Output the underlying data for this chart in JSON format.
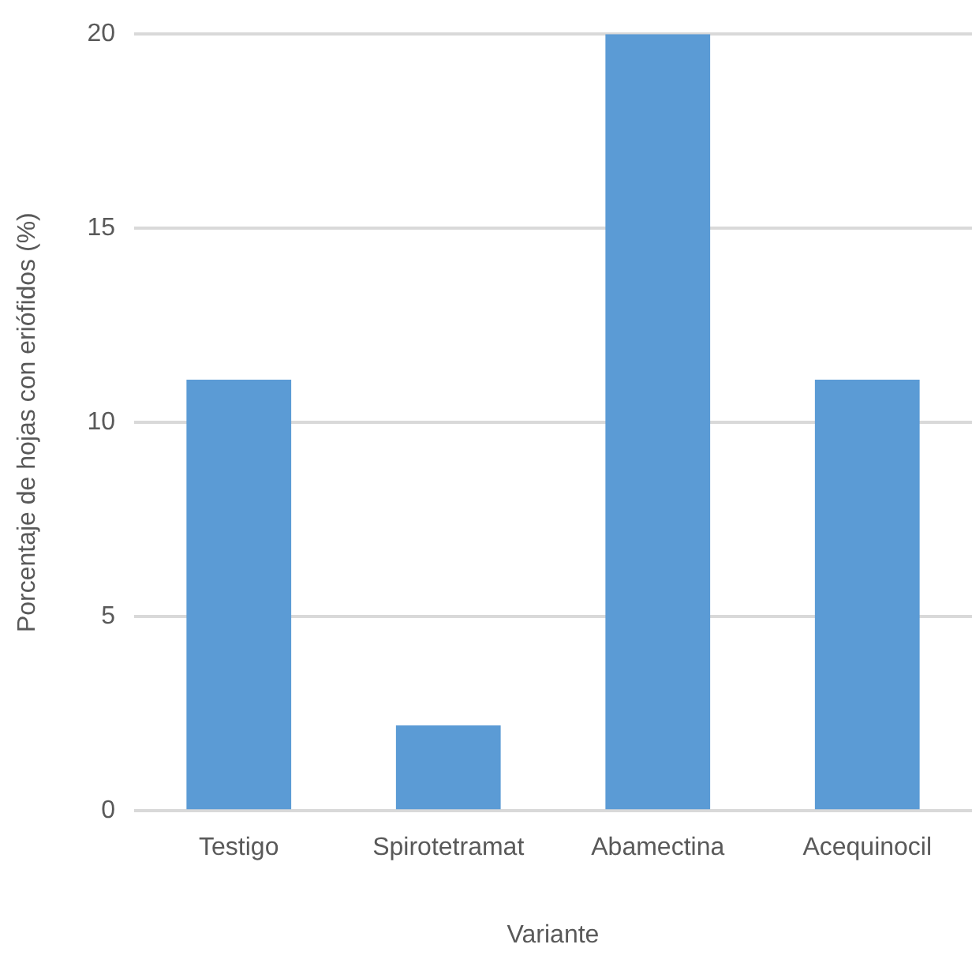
{
  "chart_data": {
    "type": "bar",
    "xlabel": "Variante",
    "ylabel": "Porcentaje de hojas con eriófidos (%)",
    "categories": [
      "Testigo",
      "Spirotetramat",
      "Abamectina",
      "Acequinocil"
    ],
    "values": [
      11.1,
      2.2,
      20,
      11.1
    ],
    "color": "#5b9bd5",
    "ylim": [
      0,
      20
    ],
    "yticks": [
      0,
      5,
      10,
      15,
      20
    ],
    "grid": "y",
    "legend": false
  }
}
